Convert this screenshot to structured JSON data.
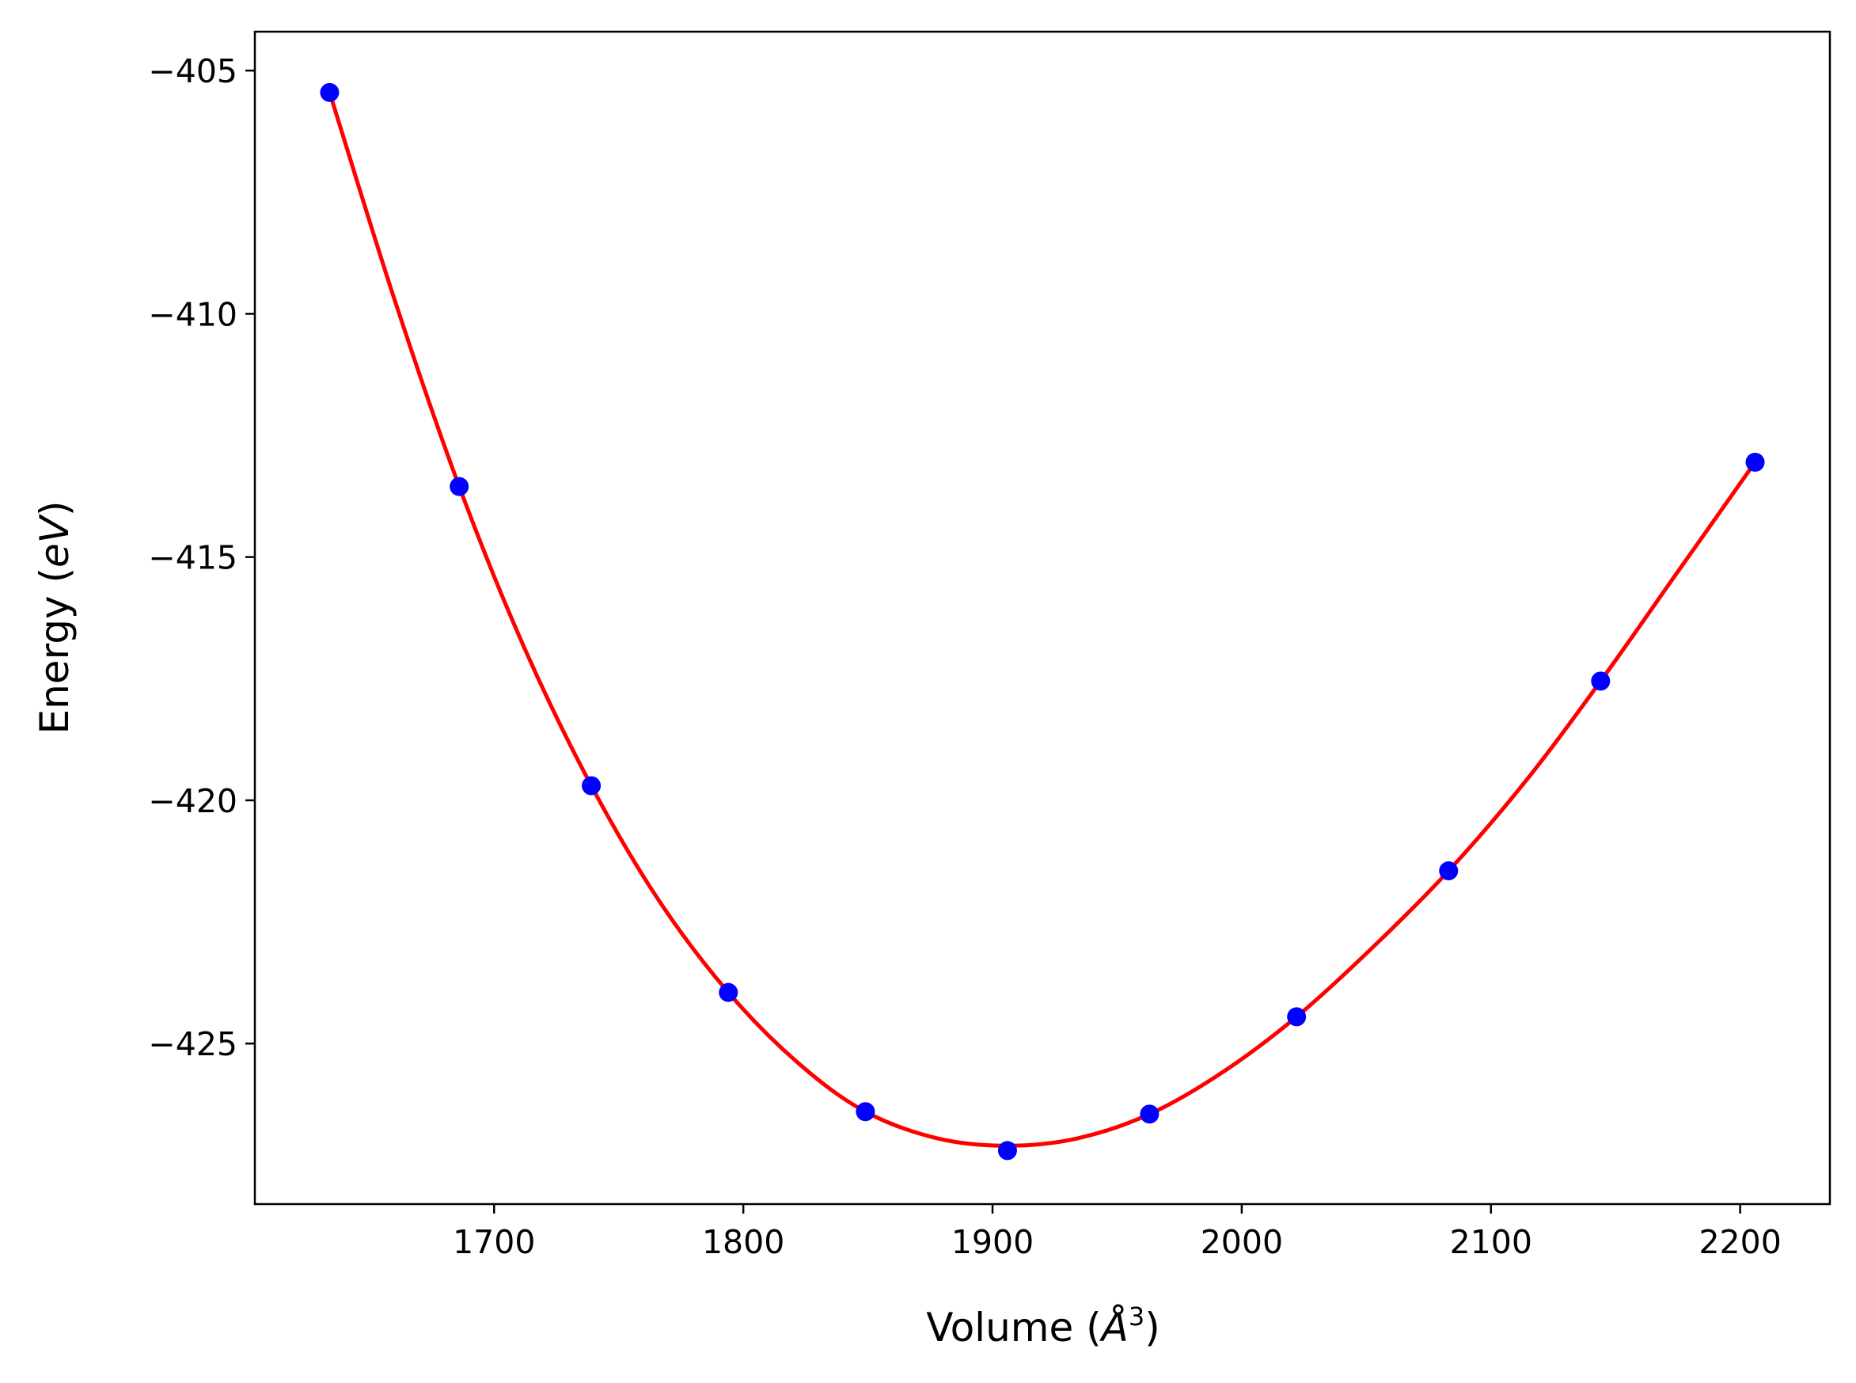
{
  "chart_data": {
    "type": "scatter",
    "title": "",
    "xlabel": {
      "prefix": "Volume (",
      "symbol": "Å",
      "exponent": "3",
      "suffix": ")"
    },
    "ylabel": {
      "prefix": "Energy (",
      "unit": "eV",
      "suffix": ")"
    },
    "xlim": [
      1604,
      2236
    ],
    "ylim": [
      -428.3,
      -404.2
    ],
    "xticks": [
      1700,
      1800,
      1900,
      2000,
      2100,
      2200
    ],
    "yticks": [
      -405,
      -410,
      -415,
      -420,
      -425
    ],
    "xtick_labels": [
      "1700",
      "1800",
      "1900",
      "2000",
      "2100",
      "2200"
    ],
    "ytick_labels": [
      "−405",
      "−410",
      "−415",
      "−420",
      "−425"
    ],
    "grid": false,
    "legend": "none",
    "series": [
      {
        "type": "scatter",
        "color": "#0000ff",
        "x": [
          1634,
          1686,
          1739,
          1794,
          1849,
          1906,
          1963,
          2022,
          2083,
          2144,
          2206
        ],
        "y": [
          -405.45,
          -413.55,
          -419.7,
          -423.95,
          -426.4,
          -427.2,
          -426.45,
          -424.45,
          -421.45,
          -417.55,
          -413.05
        ]
      },
      {
        "type": "line",
        "color": "#ff0000",
        "x": [
          1634,
          1660,
          1686,
          1712,
          1739,
          1766,
          1794,
          1822,
          1849,
          1878,
          1906,
          1934,
          1963,
          1992,
          2022,
          2052,
          2083,
          2114,
          2144,
          2175,
          2206
        ],
        "y": [
          -405.45,
          -409.7,
          -413.55,
          -416.85,
          -419.7,
          -422.05,
          -423.95,
          -425.4,
          -426.4,
          -426.95,
          -427.1,
          -426.95,
          -426.45,
          -425.6,
          -424.45,
          -423.05,
          -421.45,
          -419.6,
          -417.55,
          -415.3,
          -413.05
        ]
      }
    ]
  }
}
